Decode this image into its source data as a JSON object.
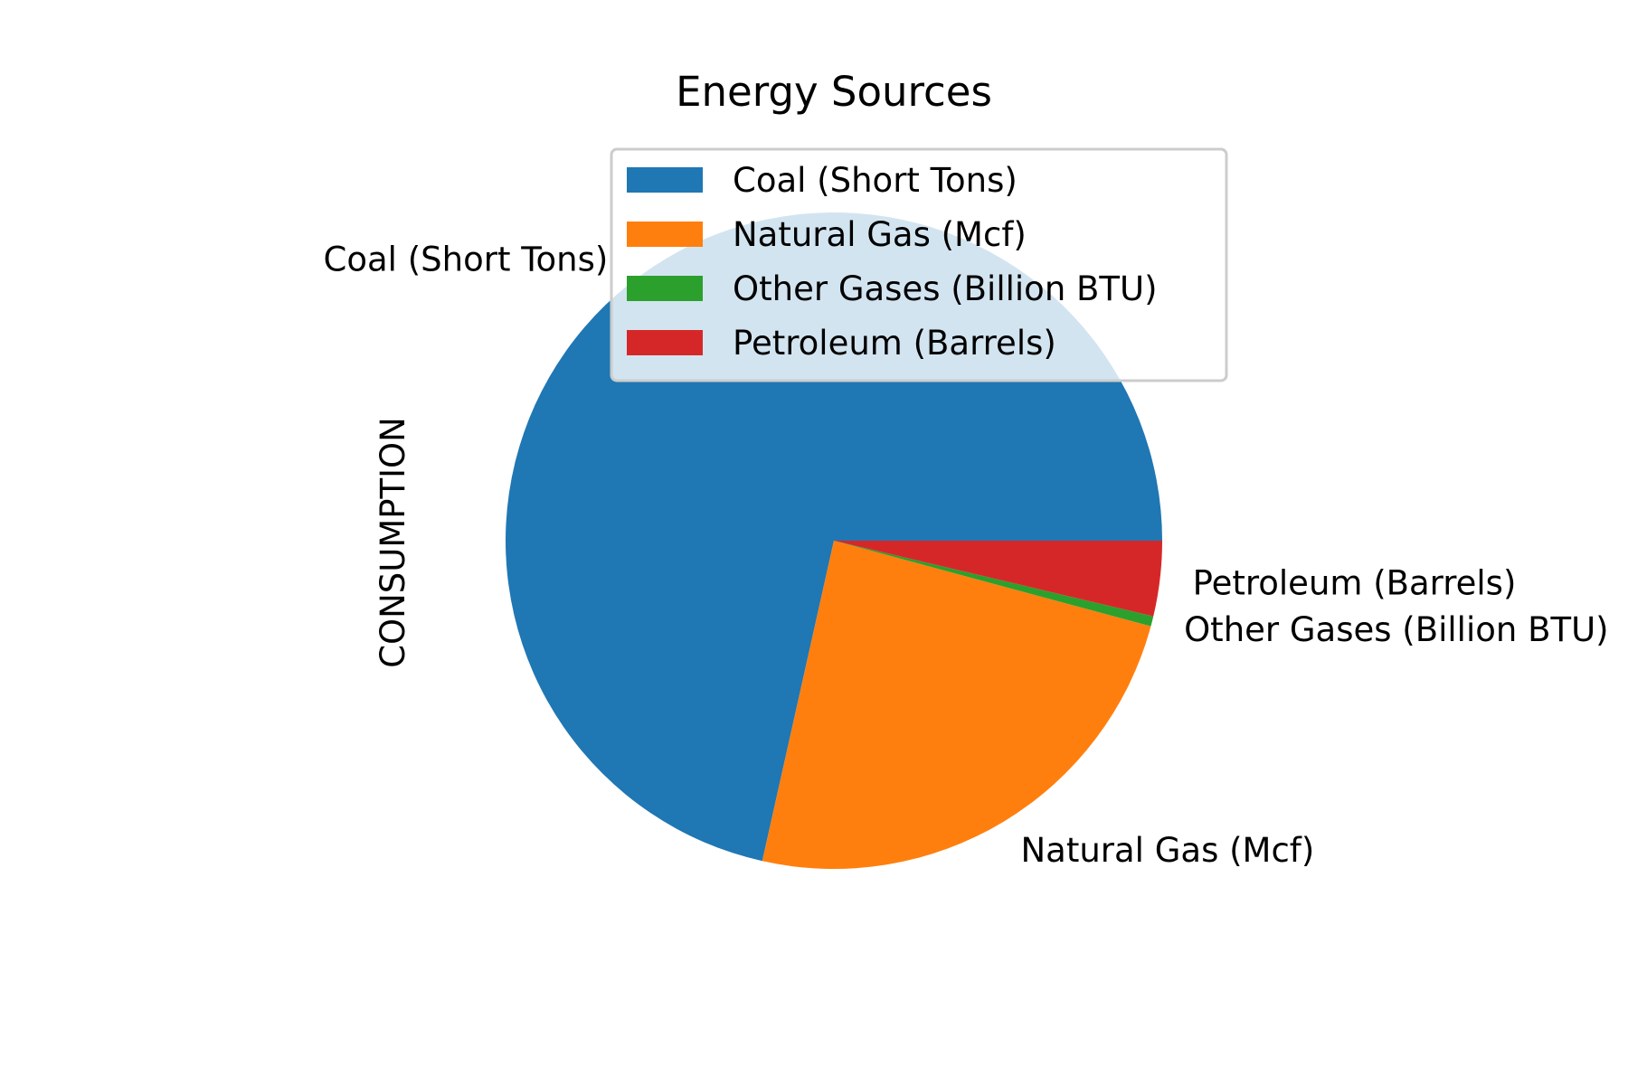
{
  "chart_data": {
    "type": "pie",
    "title": "Energy Sources",
    "ylabel": "CONSUMPTION",
    "categories": [
      "Coal (Short Tons)",
      "Natural Gas (Mcf)",
      "Other Gases (Billion BTU)",
      "Petroleum (Barrels)"
    ],
    "values": [
      71.5,
      24.3,
      0.5,
      3.7
    ],
    "colors": [
      "#1f77b4",
      "#ff7f0e",
      "#2ca02c",
      "#d62728"
    ],
    "start_angle_deg": 0,
    "direction": "counterclockwise",
    "legend": {
      "position": "top-right",
      "entries": [
        "Coal (Short Tons)",
        "Natural Gas (Mcf)",
        "Other Gases (Billion BTU)",
        "Petroleum (Barrels)"
      ]
    }
  }
}
